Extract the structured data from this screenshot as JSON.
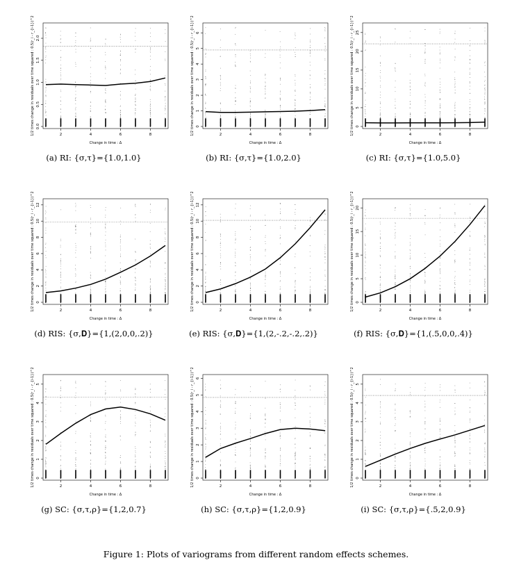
{
  "figure_caption": "Figure 1: Plots of variograms from different random effects schemes.",
  "shared": {
    "xlabel": "Change in time : Δ",
    "ylabel": "1/2 times change in residuals over time squared : 0.5(r_i - r_{i-1})^2",
    "x_ticks": [
      2,
      4,
      6,
      8
    ],
    "x_range": [
      1,
      9
    ]
  },
  "chart_data": [
    {
      "id": "a",
      "type": "scatter",
      "caption": "(a) RI: {σ,τ}={1.0,1.0}",
      "y_ticks": [
        "0.0",
        "0.5",
        "1.0",
        "1.5",
        "2.0"
      ],
      "y_tick_values": [
        0,
        0.5,
        1,
        1.5,
        2
      ],
      "ylim": [
        0,
        2.3
      ],
      "dotted_line": 1.82,
      "curve": {
        "x": [
          1,
          2,
          3,
          4,
          5,
          6,
          7,
          8,
          9
        ],
        "y": [
          0.95,
          0.96,
          0.95,
          0.94,
          0.93,
          0.96,
          0.98,
          1.02,
          1.1
        ]
      }
    },
    {
      "id": "b",
      "type": "scatter",
      "caption": "(b) RI: {σ,τ}={1.0,2.0}",
      "y_ticks": [
        "0",
        "1",
        "2",
        "3",
        "4",
        "5",
        "6"
      ],
      "y_tick_values": [
        0,
        1,
        2,
        3,
        4,
        5,
        6
      ],
      "ylim": [
        0,
        6.5
      ],
      "dotted_line": 4.9,
      "curve": {
        "x": [
          1,
          2,
          3,
          4,
          5,
          6,
          7,
          8,
          9
        ],
        "y": [
          0.95,
          0.9,
          0.9,
          0.92,
          0.94,
          0.96,
          0.98,
          1.02,
          1.08
        ]
      }
    },
    {
      "id": "c",
      "type": "scatter",
      "caption": "(c) RI: {σ,τ}={1.0,5.0}",
      "y_ticks": [
        "0",
        "5",
        "10",
        "15",
        "20",
        "25"
      ],
      "y_tick_values": [
        0,
        5,
        10,
        15,
        20,
        25
      ],
      "ylim": [
        0,
        27
      ],
      "dotted_line": 22,
      "curve": {
        "x": [
          1,
          2,
          3,
          4,
          5,
          6,
          7,
          8,
          9
        ],
        "y": [
          1.0,
          0.95,
          0.95,
          0.96,
          0.97,
          0.98,
          1.0,
          1.05,
          1.15
        ]
      }
    },
    {
      "id": "d",
      "type": "scatter",
      "caption": "(d) RIS: {σ,𝐃}={1,(2,0,0,.2)}",
      "y_ticks": [
        "0",
        "2",
        "4",
        "6",
        "8",
        "10",
        "12"
      ],
      "y_tick_values": [
        0,
        2,
        4,
        6,
        8,
        10,
        12
      ],
      "ylim": [
        0,
        12.5
      ],
      "dotted_line": 9.9,
      "curve": {
        "x": [
          1,
          2,
          3,
          4,
          5,
          6,
          7,
          8,
          9
        ],
        "y": [
          1.2,
          1.4,
          1.75,
          2.2,
          2.85,
          3.7,
          4.6,
          5.7,
          7.0
        ]
      }
    },
    {
      "id": "e",
      "type": "scatter",
      "caption": "(e) RIS: {σ,𝐃}={1,(2,-.2,-.2,.2)}",
      "y_ticks": [
        "0",
        "2",
        "4",
        "6",
        "8",
        "10",
        "12"
      ],
      "y_tick_values": [
        0,
        2,
        4,
        6,
        8,
        10,
        12
      ],
      "ylim": [
        0,
        12.5
      ],
      "dotted_line": 10.1,
      "curve": {
        "x": [
          1,
          2,
          3,
          4,
          5,
          6,
          7,
          8,
          9
        ],
        "y": [
          1.2,
          1.65,
          2.3,
          3.1,
          4.1,
          5.5,
          7.2,
          9.2,
          11.4
        ]
      }
    },
    {
      "id": "f",
      "type": "scatter",
      "caption": "(f) RIS: {σ,𝐃}={1,(.5,0,0,.4)}",
      "y_ticks": [
        "0",
        "5",
        "10",
        "15",
        "20"
      ],
      "y_tick_values": [
        0,
        5,
        10,
        15,
        20
      ],
      "ylim": [
        0,
        21.5
      ],
      "dotted_line": 17.8,
      "curve": {
        "x": [
          1,
          2,
          3,
          4,
          5,
          6,
          7,
          8,
          9
        ],
        "y": [
          1.1,
          2.0,
          3.3,
          5.0,
          7.2,
          9.8,
          12.9,
          16.5,
          20.5
        ]
      }
    },
    {
      "id": "g",
      "type": "scatter",
      "caption": "(g) SC: {σ,τ,ρ}={1,2,0.7}",
      "y_ticks": [
        "0",
        "1",
        "2",
        "3",
        "4",
        "5"
      ],
      "y_tick_values": [
        0,
        1,
        2,
        3,
        4,
        5
      ],
      "ylim": [
        0,
        5.4
      ],
      "dotted_line": 4.3,
      "curve": {
        "x": [
          1,
          2,
          3,
          4,
          5,
          6,
          7,
          8,
          9
        ],
        "y": [
          1.8,
          2.38,
          2.92,
          3.38,
          3.68,
          3.78,
          3.65,
          3.42,
          3.08
        ]
      }
    },
    {
      "id": "h",
      "type": "scatter",
      "caption": "(h) SC: {σ,τ,ρ}={1,2,0.9}",
      "y_ticks": [
        "0",
        "1",
        "2",
        "3",
        "4",
        "5",
        "6"
      ],
      "y_tick_values": [
        0,
        1,
        2,
        3,
        4,
        5,
        6
      ],
      "ylim": [
        0,
        6.1
      ],
      "dotted_line": 4.85,
      "curve": {
        "x": [
          1,
          2,
          3,
          4,
          5,
          6,
          7,
          8,
          9
        ],
        "y": [
          1.25,
          1.78,
          2.1,
          2.38,
          2.68,
          2.92,
          3.0,
          2.95,
          2.85
        ]
      }
    },
    {
      "id": "i",
      "type": "scatter",
      "caption": "(i) SC: {σ,τ,ρ}={.5,2,0.9}",
      "y_ticks": [
        "0",
        "1",
        "2",
        "3",
        "4",
        "5"
      ],
      "y_tick_values": [
        0,
        1,
        2,
        3,
        4,
        5
      ],
      "ylim": [
        0,
        5.4
      ],
      "dotted_line": 4.4,
      "curve": {
        "x": [
          1,
          2,
          3,
          4,
          5,
          6,
          7,
          8,
          9
        ],
        "y": [
          0.62,
          0.95,
          1.28,
          1.58,
          1.85,
          2.08,
          2.3,
          2.55,
          2.8
        ]
      }
    }
  ]
}
